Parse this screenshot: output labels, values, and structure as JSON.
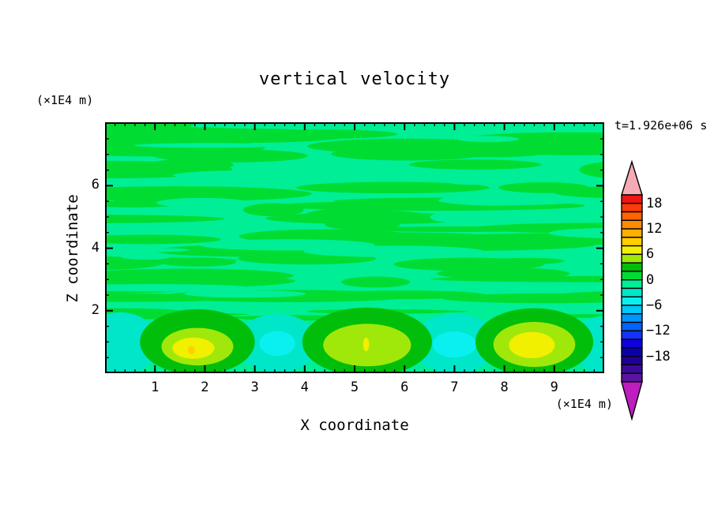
{
  "chart_data": {
    "type": "heatmap",
    "subtype": "filled-contour",
    "title": "vertical velocity",
    "time_annotation": "t=1.926e+06 s",
    "x": {
      "label": "X coordinate",
      "units": "(×1E4 m)",
      "min": 0,
      "max": 10,
      "major_ticks": [
        1,
        2,
        3,
        4,
        5,
        6,
        7,
        8,
        9
      ],
      "minor_tick_step": 0.2
    },
    "y": {
      "label": "Z coordinate",
      "units": "(×1E4 m)",
      "min": 0,
      "max": 8,
      "major_ticks": [
        6,
        4,
        2
      ],
      "minor_tick_step": 0.5
    },
    "colorbar": {
      "tick_labels": [
        "18",
        "12",
        "6",
        "0",
        "−6",
        "−12",
        "−18"
      ],
      "label_every_n_cells": 3,
      "units_per_cell": 2,
      "top_boundary_value": 20,
      "cell_colors": [
        "#F01414",
        "#FA3C0A",
        "#FF6400",
        "#FF8C00",
        "#FFAF00",
        "#FFCE00",
        "#F0F000",
        "#A0E80A",
        "#00BE0A",
        "#00DC32",
        "#00EE96",
        "#00E6C8",
        "#0AF0F0",
        "#00C8F5",
        "#0096FF",
        "#0064FF",
        "#1432FF",
        "#0F00DC",
        "#0A00AA",
        "#1E0099",
        "#3C0A99",
        "#5A14A0"
      ],
      "over_arrow_color": "#F6AAB4",
      "under_arrow_color": "#BE1EBE"
    },
    "field": {
      "description": "Near-zero horizontal streaks (w between -2 and 2) fill the region above z=2; a row of alternating convective updrafts and downdrafts sits below z=2.",
      "streak_positive_color": "#00DC32",
      "streak_negative_color": "#00EE96",
      "updrafts": [
        {
          "x": 1.85,
          "rings": [
            {
              "level": 2,
              "rx": 1.15,
              "rz": 1.05,
              "cz": 1.0,
              "dx": 0
            },
            {
              "level": 4,
              "rx": 0.72,
              "rz": 0.6,
              "cz": 0.85,
              "dx": 0
            },
            {
              "level": 6,
              "rx": 0.42,
              "rz": 0.34,
              "cz": 0.8,
              "dx": -0.08
            },
            {
              "level": 8,
              "rx": 0.07,
              "rz": 0.13,
              "cz": 0.74,
              "dx": -0.12
            }
          ]
        },
        {
          "x": 5.25,
          "rings": [
            {
              "level": 2,
              "rx": 1.3,
              "rz": 1.1,
              "cz": 1.0,
              "dx": 0
            },
            {
              "level": 4,
              "rx": 0.88,
              "rz": 0.68,
              "cz": 0.9,
              "dx": 0
            },
            {
              "level": 6,
              "rx": 0.06,
              "rz": 0.22,
              "cz": 0.92,
              "dx": -0.02
            }
          ]
        },
        {
          "x": 8.6,
          "rings": [
            {
              "level": 2,
              "rx": 1.18,
              "rz": 1.08,
              "cz": 1.0,
              "dx": 0
            },
            {
              "level": 4,
              "rx": 0.82,
              "rz": 0.72,
              "cz": 0.92,
              "dx": 0
            },
            {
              "level": 6,
              "rx": 0.46,
              "rz": 0.42,
              "cz": 0.9,
              "dx": -0.05
            }
          ]
        }
      ],
      "downdrafts": [
        {
          "x": 0.3,
          "rings": [
            {
              "level": -4,
              "rx": 0.78,
              "rz": 1.0,
              "cz": 0.95,
              "dx": 0
            }
          ]
        },
        {
          "x": 3.45,
          "rings": [
            {
              "level": -4,
              "rx": 0.82,
              "rz": 0.95,
              "cz": 0.95,
              "dx": 0
            },
            {
              "level": -6,
              "rx": 0.36,
              "rz": 0.4,
              "cz": 0.95,
              "dx": 0
            }
          ]
        },
        {
          "x": 7.0,
          "rings": [
            {
              "level": -4,
              "rx": 0.88,
              "rz": 0.95,
              "cz": 0.95,
              "dx": 0
            },
            {
              "level": -6,
              "rx": 0.44,
              "rz": 0.42,
              "cz": 0.92,
              "dx": 0
            }
          ]
        },
        {
          "x": 9.95,
          "rings": [
            {
              "level": -4,
              "rx": 0.6,
              "rz": 0.9,
              "cz": 0.92,
              "dx": 0
            }
          ]
        }
      ]
    }
  }
}
